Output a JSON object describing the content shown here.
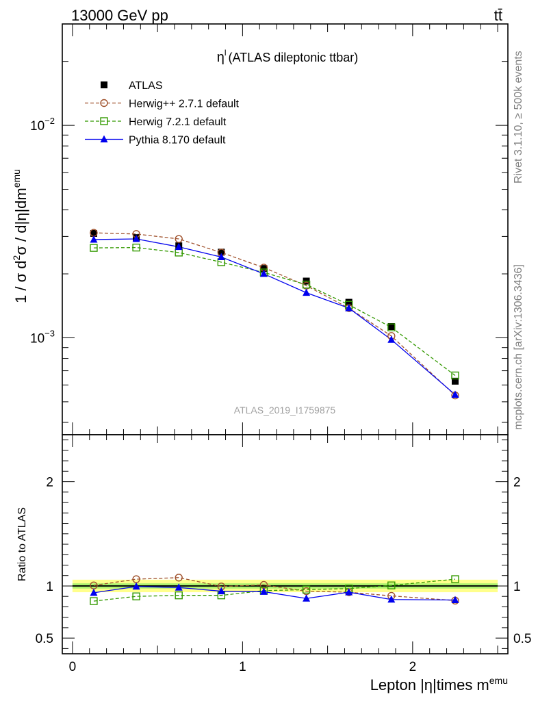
{
  "header": {
    "energy_label": "13000 GeV pp",
    "process_label": "tt̄"
  },
  "side_labels": {
    "rivet_label": "Rivet 3.1.10, ≥ 500k events",
    "mcplots_label": "mcplots.cern.ch [arXiv:1306.3436]"
  },
  "chart_data": [
    {
      "type": "line",
      "title_symbol": "η",
      "title_sup": "l",
      "title": "(ATLAS dileptonic ttbar)",
      "watermark": "ATLAS_2019_I1759875",
      "ylabel": "1 / σ  d²σ / d|η|dm^emu",
      "ylabel_parts": {
        "p1": "1 / σ  d",
        "s1": "2",
        "p2": "σ / d|η|dm",
        "s2": "emu"
      },
      "yscale": "log",
      "ylim": [
        0.00035,
        0.03
      ],
      "xlim": [
        -0.06,
        2.56
      ],
      "y_major_ticks": [
        {
          "value": 0.01,
          "label_base": "10",
          "label_exp": "−2"
        },
        {
          "value": 0.001,
          "label_base": "10",
          "label_exp": "−3"
        }
      ],
      "legend_position": "top-left",
      "x": [
        0.125,
        0.375,
        0.625,
        0.875,
        1.125,
        1.375,
        1.625,
        1.875,
        2.25
      ],
      "series": [
        {
          "name": "ATLAS",
          "marker": "square-filled",
          "color": "#000000",
          "values": [
            0.0031,
            0.00296,
            0.00271,
            0.00253,
            0.00212,
            0.00185,
            0.00147,
            0.00113,
            0.000625
          ]
        },
        {
          "name": "Herwig++ 2.7.1 default",
          "marker": "circle-open",
          "color": "#a0522d",
          "dash": "5,3",
          "values": [
            0.00312,
            0.00308,
            0.00292,
            0.00252,
            0.00214,
            0.00176,
            0.00138,
            0.00102,
            0.000536
          ]
        },
        {
          "name": "Herwig 7.2.1 default",
          "marker": "square-open",
          "color": "#339900",
          "dash": "5,3",
          "values": [
            0.00265,
            0.00266,
            0.00252,
            0.00227,
            0.00203,
            0.00178,
            0.00143,
            0.00112,
            0.000665
          ]
        },
        {
          "name": "Pythia 8.170 default",
          "marker": "triangle-filled",
          "color": "#0000ee",
          "values": [
            0.0029,
            0.00292,
            0.00268,
            0.0024,
            0.002,
            0.00163,
            0.00138,
            0.00098,
            0.00054
          ]
        }
      ]
    },
    {
      "type": "line",
      "ylabel": "Ratio to ATLAS",
      "xlabel": "Lepton |η|times m^emu",
      "xlabel_parts": {
        "p1": "Lepton |η|times m",
        "s1": "emu"
      },
      "ylim": [
        0.35,
        2.45
      ],
      "xlim": [
        -0.06,
        2.56
      ],
      "y_major_ticks": [
        0.5,
        1,
        2
      ],
      "y_tick_labels": [
        "0.5",
        "1",
        "2"
      ],
      "x_tick_labels": [
        "0",
        "1",
        "2"
      ],
      "x_ticks": [
        0,
        1,
        2
      ],
      "reference_value": 1,
      "x": [
        0.125,
        0.375,
        0.625,
        0.875,
        1.125,
        1.375,
        1.625,
        1.875,
        2.25
      ],
      "series": [
        {
          "name": "Herwig++ 2.7.1 default",
          "color": "#a0522d",
          "values": [
            1.005,
            1.065,
            1.08,
            0.995,
            1.01,
            0.95,
            0.94,
            0.905,
            0.86
          ]
        },
        {
          "name": "Herwig 7.2.1 default",
          "color": "#339900",
          "values": [
            0.855,
            0.9,
            0.91,
            0.91,
            0.955,
            0.965,
            0.975,
            1.005,
            1.065
          ]
        },
        {
          "name": "Pythia 8.170 default",
          "color": "#0000ee",
          "values": [
            0.935,
            0.995,
            0.985,
            0.95,
            0.945,
            0.88,
            0.94,
            0.87,
            0.865
          ]
        }
      ]
    }
  ]
}
